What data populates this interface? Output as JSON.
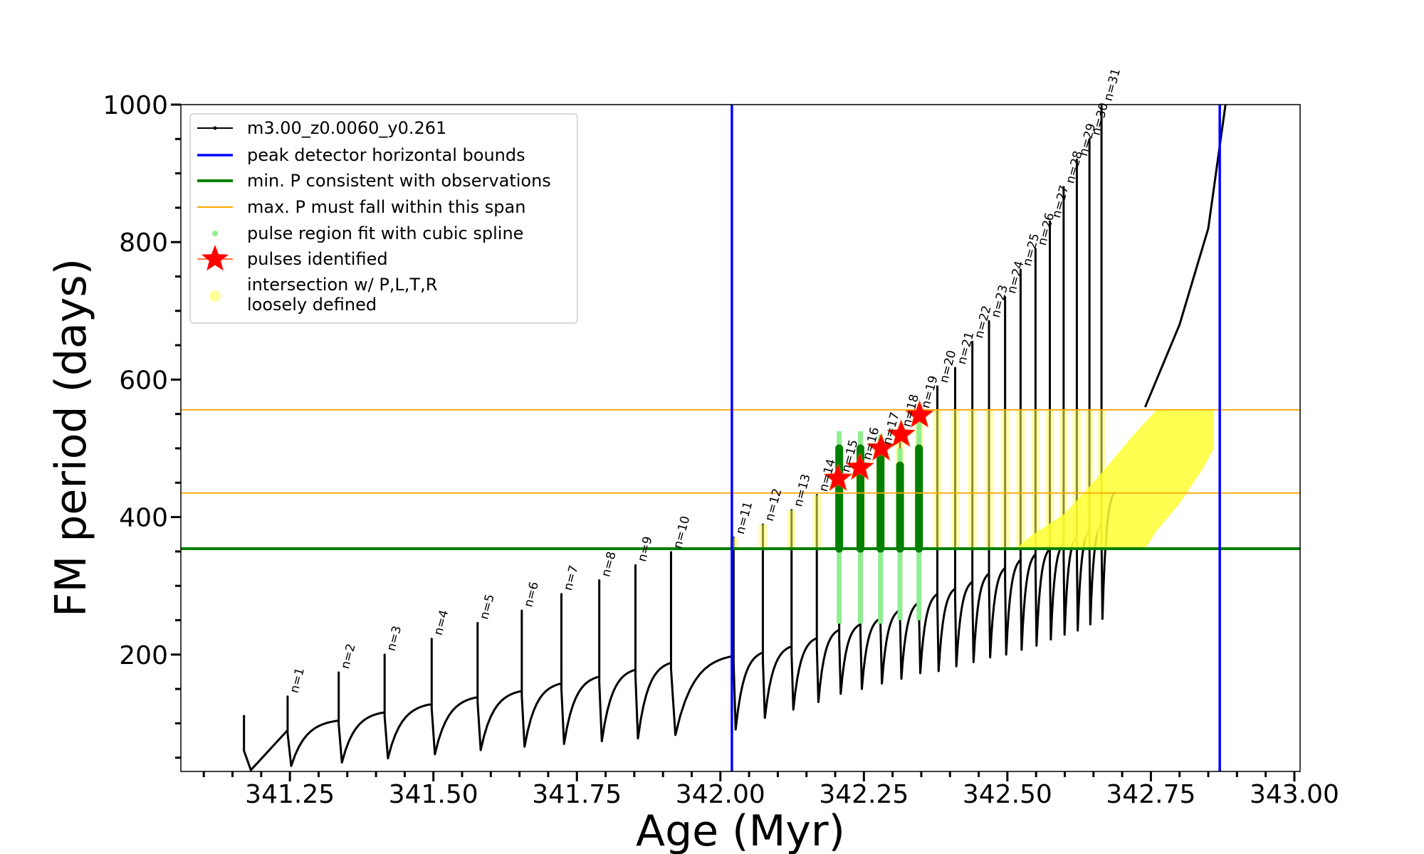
{
  "chart_data": {
    "type": "scatter",
    "xlabel": "Age (Myr)",
    "ylabel": "FM period (days)",
    "xlim": [
      341.06,
      343.01
    ],
    "ylim": [
      30,
      1000
    ],
    "x_ticks": [
      341.25,
      341.5,
      341.75,
      342.0,
      342.25,
      342.5,
      342.75,
      343.0
    ],
    "x_tick_labels": [
      "341.25",
      "341.50",
      "341.75",
      "342.00",
      "342.25",
      "342.50",
      "342.75",
      "343.00"
    ],
    "y_ticks": [
      200,
      400,
      600,
      800,
      1000
    ],
    "y_tick_labels": [
      "200",
      "400",
      "600",
      "800",
      "1000"
    ],
    "grid": false,
    "legend_position": "top-left",
    "legend": [
      {
        "label": "m3.00_z0.0060_y0.261",
        "color": "#000000",
        "marker": "line-dot"
      },
      {
        "label": "peak detector horizontal bounds",
        "color": "#0000ff",
        "marker": "line"
      },
      {
        "label": "min. P consistent with observations",
        "color": "#008000",
        "marker": "thick-line"
      },
      {
        "label": "max. P must fall within this span",
        "color": "#ffa500",
        "marker": "thin-line"
      },
      {
        "label": "pulse region fit with cubic spline",
        "color": "#90ee90",
        "marker": "dot"
      },
      {
        "label": "pulses identified",
        "color": "#ff0000",
        "marker": "star"
      },
      {
        "label": "intersection w/ P,L,T,R",
        "label2": "loosely defined",
        "color": "#ffff99",
        "marker": "circle"
      }
    ],
    "vertical_lines": {
      "name": "peak detector horizontal bounds",
      "color": "#0000ff",
      "x": [
        342.02,
        342.87
      ]
    },
    "min_period_line": {
      "name": "min. P consistent with observations",
      "color": "#008000",
      "y": 354
    },
    "max_period_span": {
      "name": "max. P must fall within this span",
      "color": "#ffa500",
      "y": [
        435,
        556
      ]
    },
    "pulses": {
      "n": [
        1,
        2,
        3,
        4,
        5,
        6,
        7,
        8,
        9,
        10,
        11,
        12,
        13,
        14,
        15,
        16,
        17,
        18,
        19,
        20,
        21,
        22,
        23,
        24,
        25,
        26,
        27,
        28,
        29,
        30,
        31
      ],
      "labels": [
        "n=1",
        "n=2",
        "n=3",
        "n=4",
        "n=5",
        "n=6",
        "n=7",
        "n=8",
        "n=9",
        "n=10",
        "n=11",
        "n=12",
        "n=13",
        "n=14",
        "n=15",
        "n=16",
        "n=17",
        "n=18",
        "n=19",
        "n=20",
        "n=21",
        "n=22",
        "n=23",
        "n=24",
        "n=25",
        "n=26",
        "n=27",
        "n=28",
        "n=29",
        "n=30",
        "n=31"
      ],
      "age_myr": [
        341.246,
        341.335,
        341.415,
        341.497,
        341.577,
        341.654,
        341.723,
        341.789,
        341.852,
        341.914,
        342.023,
        342.074,
        342.124,
        342.168,
        342.207,
        342.244,
        342.279,
        342.313,
        342.346,
        342.378,
        342.409,
        342.439,
        342.468,
        342.496,
        342.523,
        342.549,
        342.574,
        342.598,
        342.621,
        342.643,
        342.664
      ],
      "peak_period_days": [
        139,
        174,
        200,
        223,
        246,
        264,
        288,
        308,
        330,
        349,
        370,
        389,
        410,
        432,
        460,
        478,
        500,
        526,
        553,
        590,
        617,
        655,
        685,
        720,
        760,
        790,
        830,
        880,
        920,
        950,
        1000
      ],
      "pre_pulse_period_days": [
        90,
        104,
        116,
        128,
        138,
        147,
        158,
        168,
        178,
        188,
        198,
        203,
        212,
        224,
        236,
        244,
        253,
        265,
        276,
        288,
        296,
        306,
        318,
        326,
        338,
        346,
        354,
        362,
        372,
        381,
        390
      ],
      "trough_period_days": [
        38,
        43,
        49,
        55,
        61,
        66,
        70,
        74,
        78,
        83,
        91,
        108,
        120,
        131,
        143,
        150,
        158,
        165,
        173,
        176,
        183,
        189,
        196,
        200,
        207,
        213,
        222,
        229,
        235,
        244,
        252
      ]
    },
    "pulses_identified": {
      "name": "pulses identified",
      "n": [
        15,
        16,
        17,
        18,
        19
      ],
      "age_myr": [
        342.205,
        342.243,
        342.28,
        342.315,
        342.347
      ],
      "period_days": [
        456,
        472,
        500,
        520,
        548
      ]
    },
    "spline_fit_regions": {
      "name": "pulse region fit with cubic spline",
      "age_myr": [
        342.207,
        342.244,
        342.279,
        342.313,
        342.346
      ],
      "period_range_days": [
        [
          245,
          525
        ],
        [
          245,
          525
        ],
        [
          245,
          520
        ],
        [
          250,
          500
        ],
        [
          250,
          560
        ]
      ]
    }
  }
}
